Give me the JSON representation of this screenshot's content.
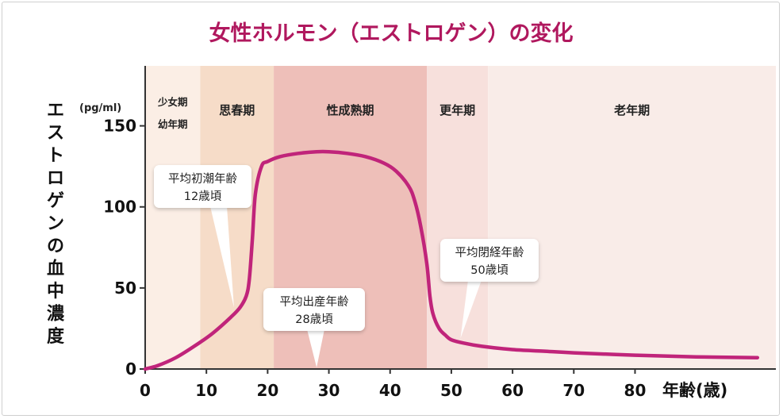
{
  "chart_data": {
    "type": "line",
    "title": "女性ホルモン（エストロゲン）の変化",
    "ylabel": "エストロゲンの血中濃度",
    "yunit": "(pg/ml)",
    "xlabel": "年齢(歳)",
    "xlim": [
      0,
      103
    ],
    "ylim": [
      0,
      187
    ],
    "xticks": [
      0,
      10,
      20,
      30,
      40,
      50,
      60,
      70,
      80
    ],
    "yticks": [
      0,
      50,
      100,
      150
    ],
    "series": [
      {
        "name": "エストロゲン",
        "color": "#c0247a",
        "x": [
          0,
          2,
          5,
          8,
          11,
          14,
          15.5,
          16.5,
          17,
          17.5,
          18,
          19,
          20,
          22,
          25,
          28,
          30,
          33,
          36,
          39,
          41,
          43,
          44,
          45,
          46,
          46.5,
          47,
          48,
          49,
          50,
          52,
          55,
          60,
          65,
          70,
          80,
          90,
          100
        ],
        "y": [
          0,
          2,
          7,
          14,
          22,
          32,
          38,
          45,
          55,
          80,
          108,
          125,
          128,
          131,
          133,
          134,
          134,
          133,
          131,
          127,
          122,
          113,
          104,
          88,
          65,
          45,
          34,
          25,
          21,
          18,
          16,
          14,
          12,
          11,
          10,
          8.5,
          7.5,
          7
        ]
      }
    ],
    "bands": [
      {
        "from": 0,
        "to": 9,
        "label": "少女期",
        "label2": "幼年期",
        "color": "#fbeee5"
      },
      {
        "from": 9,
        "to": 21,
        "label": "思春期",
        "color": "#f6dcc8"
      },
      {
        "from": 21,
        "to": 46,
        "label": "性成熟期",
        "color": "#eebfb9"
      },
      {
        "from": 46,
        "to": 56,
        "label": "更年期",
        "color": "#f7e0dc"
      },
      {
        "from": 56,
        "to": 103,
        "label": "老年期",
        "color": "#f9ece8"
      }
    ],
    "annotations": [
      {
        "line1": "平均初潮年齢",
        "line2": "12歳頃",
        "pointer_x": 14.5,
        "pointer_y": 38
      },
      {
        "line1": "平均出産年齢",
        "line2": "28歳頃",
        "pointer_x": 28,
        "pointer_y": 0
      },
      {
        "line1": "平均閉経年齢",
        "line2": "50歳頃",
        "pointer_x": 51.5,
        "pointer_y": 19
      }
    ]
  }
}
